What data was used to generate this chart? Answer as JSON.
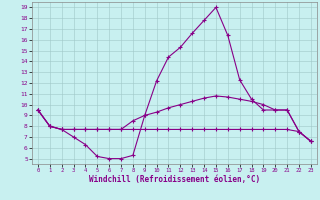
{
  "xlabel": "Windchill (Refroidissement éolien,°C)",
  "bg_color": "#c8f0f0",
  "grid_color": "#a0c8c8",
  "line_color": "#880088",
  "xlim": [
    -0.5,
    23.5
  ],
  "ylim": [
    4.5,
    19.5
  ],
  "yticks": [
    5,
    6,
    7,
    8,
    9,
    10,
    11,
    12,
    13,
    14,
    15,
    16,
    17,
    18,
    19
  ],
  "xticks": [
    0,
    1,
    2,
    3,
    4,
    5,
    6,
    7,
    8,
    9,
    10,
    11,
    12,
    13,
    14,
    15,
    16,
    17,
    18,
    19,
    20,
    21,
    22,
    23
  ],
  "line1_x": [
    0,
    1,
    2,
    3,
    4,
    5,
    6,
    7,
    8,
    9,
    10,
    11,
    12,
    13,
    14,
    15,
    16,
    17,
    18,
    19,
    20,
    21,
    22,
    23
  ],
  "line1_y": [
    9.5,
    8.0,
    7.7,
    7.0,
    6.3,
    5.2,
    5.0,
    5.0,
    5.3,
    9.0,
    12.2,
    14.4,
    15.3,
    16.6,
    17.8,
    19.0,
    16.4,
    12.3,
    10.5,
    9.5,
    9.5,
    9.5,
    7.5,
    6.6
  ],
  "line2_x": [
    0,
    1,
    2,
    3,
    4,
    5,
    6,
    7,
    8,
    9,
    10,
    11,
    12,
    13,
    14,
    15,
    16,
    17,
    18,
    19,
    20,
    21,
    22,
    23
  ],
  "line2_y": [
    9.5,
    8.0,
    7.7,
    7.7,
    7.7,
    7.7,
    7.7,
    7.7,
    8.5,
    9.0,
    9.3,
    9.7,
    10.0,
    10.3,
    10.6,
    10.8,
    10.7,
    10.5,
    10.3,
    10.0,
    9.5,
    9.5,
    7.5,
    6.6
  ],
  "line3_x": [
    0,
    1,
    2,
    3,
    4,
    5,
    6,
    7,
    8,
    9,
    10,
    11,
    12,
    13,
    14,
    15,
    16,
    17,
    18,
    19,
    20,
    21,
    22,
    23
  ],
  "line3_y": [
    9.5,
    8.0,
    7.7,
    7.7,
    7.7,
    7.7,
    7.7,
    7.7,
    7.7,
    7.7,
    7.7,
    7.7,
    7.7,
    7.7,
    7.7,
    7.7,
    7.7,
    7.7,
    7.7,
    7.7,
    7.7,
    7.7,
    7.5,
    6.6
  ]
}
